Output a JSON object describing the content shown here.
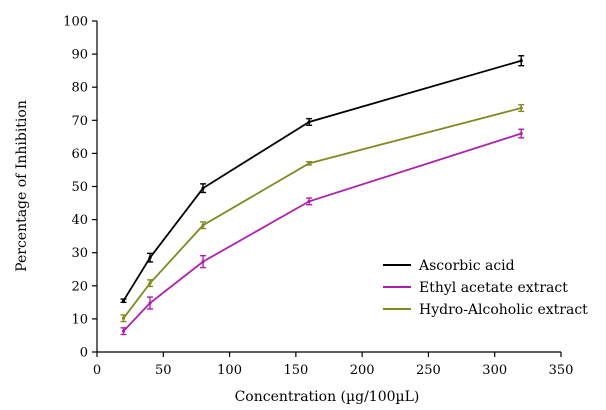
{
  "chart_data": {
    "type": "line",
    "xlabel": "Concentration (µg/100µL)",
    "ylabel": "Percentage of Inhibition",
    "xlim": [
      0,
      350
    ],
    "ylim": [
      0,
      100
    ],
    "xticks": [
      0,
      50,
      100,
      150,
      200,
      250,
      300,
      350
    ],
    "yticks": [
      0,
      10,
      20,
      30,
      40,
      50,
      60,
      70,
      80,
      90,
      100
    ],
    "grid": false,
    "legend": "center-right",
    "x": [
      20,
      40,
      80,
      160,
      320
    ],
    "series": [
      {
        "name": "Ascorbic acid",
        "color": "#000000",
        "values": [
          15.5,
          28.5,
          49.5,
          69.5,
          88
        ],
        "errors": [
          0.5,
          1.3,
          1.3,
          1.0,
          1.5
        ]
      },
      {
        "name": "Ethyl acetate extract",
        "color": "#b020b0",
        "values": [
          6.3,
          14.8,
          27.3,
          45.5,
          66
        ],
        "errors": [
          1.0,
          1.8,
          1.8,
          1.0,
          1.3
        ]
      },
      {
        "name": "Hydro-Alcoholic extract",
        "color": "#808a20",
        "values": [
          10.2,
          20.8,
          38.3,
          57,
          73.7
        ],
        "errors": [
          1.0,
          1.0,
          1.0,
          0.5,
          1.0
        ]
      }
    ]
  }
}
